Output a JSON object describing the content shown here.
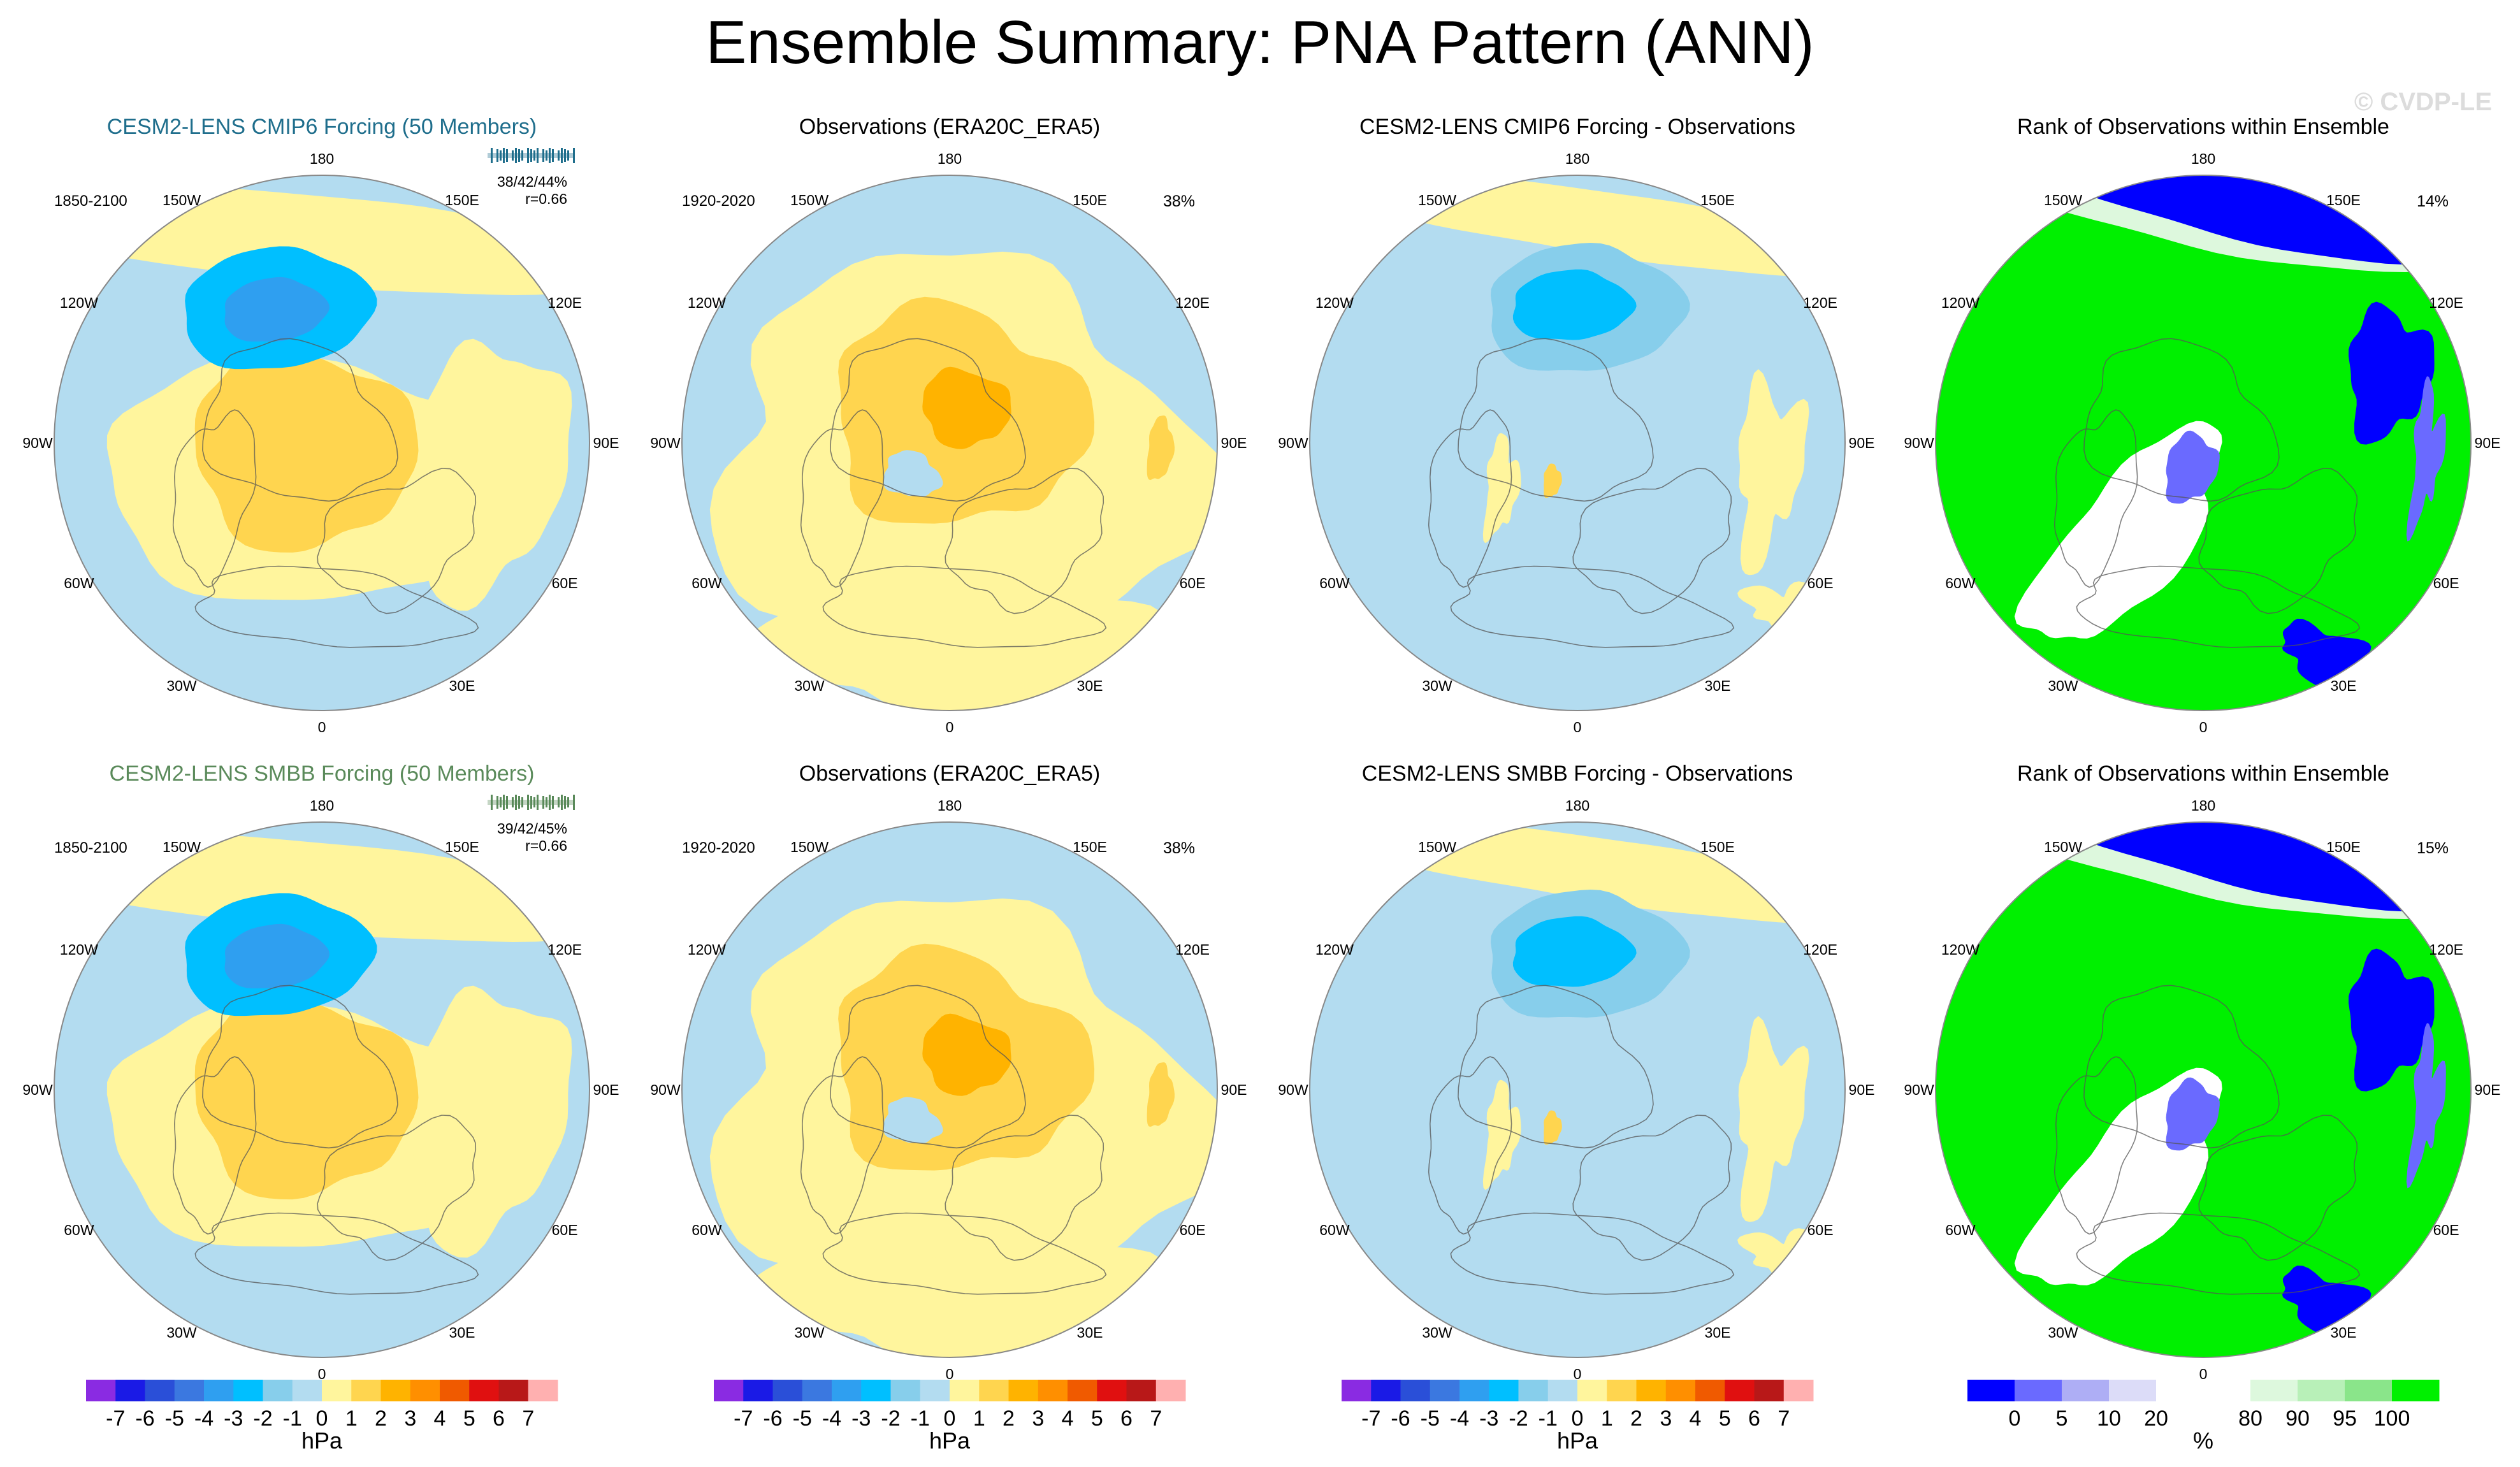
{
  "header": {
    "title": "Ensemble Summary: PNA Pattern (ANN)",
    "watermark": "© CVDP-LE"
  },
  "lon_labels": [
    "180",
    "150E",
    "120E",
    "90E",
    "60E",
    "30E",
    "0",
    "30W",
    "60W",
    "90W",
    "120W",
    "150W"
  ],
  "rows": [
    {
      "model_title": "CESM2-LENS CMIP6 Forcing (50 Members)",
      "model_color": "#1f6e8c",
      "model_period": "1850-2100",
      "model_stats": "38/42/44%",
      "model_r": "r=0.66",
      "obs_title": "Observations (ERA20C_ERA5)",
      "obs_period": "1920-2020",
      "obs_pct": "38%",
      "diff_title": "CESM2-LENS CMIP6 Forcing - Observations",
      "rank_title": "Rank of Observations within Ensemble",
      "rank_pct": "14%"
    },
    {
      "model_title": "CESM2-LENS SMBB Forcing (50 Members)",
      "model_color": "#5a8a5a",
      "model_period": "1850-2100",
      "model_stats": "39/42/45%",
      "model_r": "r=0.66",
      "obs_title": "Observations (ERA20C_ERA5)",
      "obs_period": "1920-2020",
      "obs_pct": "38%",
      "diff_title": "CESM2-LENS SMBB Forcing - Observations",
      "rank_title": "Rank of Observations within Ensemble",
      "rank_pct": "15%"
    }
  ],
  "chart_data": {
    "type": "heatmap",
    "projection": "polar stereographic, Northern Hemisphere",
    "variable": "PNA pattern sea level pressure regression",
    "colorbar": {
      "unit": "hPa",
      "tick_labels": [
        "-7",
        "-6",
        "-5",
        "-4",
        "-3",
        "-2",
        "-1",
        "0",
        "1",
        "2",
        "3",
        "4",
        "5",
        "6",
        "7"
      ],
      "colors": [
        "#8a2be2",
        "#1a1ae6",
        "#2a4fd8",
        "#3b78e0",
        "#2f9ff0",
        "#00bfff",
        "#87ceeb",
        "#b3dcf0",
        "#fff59d",
        "#ffd54f",
        "#ffb300",
        "#ff8f00",
        "#f05a00",
        "#e01010",
        "#b81818",
        "#ffb0b0"
      ]
    },
    "rank_colorbar": {
      "unit": "%",
      "tick_labels": [
        "0",
        "5",
        "10",
        "20",
        "80",
        "90",
        "95",
        "100"
      ],
      "colors": [
        "#0000ff",
        "#6a6aff",
        "#aeaef5",
        "#dcdcf8",
        "#ffffff",
        "#ffffff",
        "#ddf8dd",
        "#b8f0b8",
        "#8ae58a",
        "#00f000"
      ]
    }
  }
}
